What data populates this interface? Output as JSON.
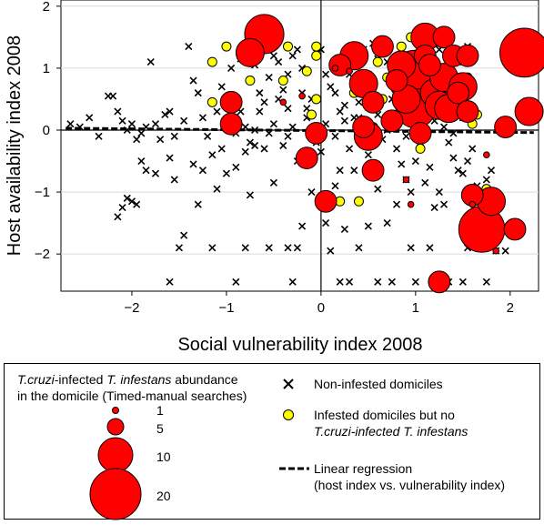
{
  "chart_data": {
    "type": "scatter",
    "xlabel": "Social vulnerability index 2008",
    "ylabel": "Host availability index 2008",
    "xlim": [
      -2.75,
      2.3
    ],
    "ylim": [
      -2.6,
      2.1
    ],
    "xticks": [
      "−2",
      "−1",
      "0",
      "1",
      "2"
    ],
    "xtick_values": [
      -2,
      -1,
      0,
      1,
      2
    ],
    "yticks": [
      "−2",
      "−1",
      "0",
      "1",
      "2"
    ],
    "ytick_values": [
      -2,
      -1,
      0,
      1,
      2
    ],
    "reference_lines": {
      "x": 0,
      "y": 0
    },
    "regression": {
      "x": [
        -2.7,
        2.25
      ],
      "y": [
        0.03,
        -0.04
      ]
    },
    "non_infested": [
      [
        -2.65,
        0.1
      ],
      [
        -2.55,
        0.05
      ],
      [
        -2.45,
        0.2
      ],
      [
        -2.35,
        -0.1
      ],
      [
        -2.25,
        0.55
      ],
      [
        -2.2,
        0.55
      ],
      [
        -2.15,
        0.3
      ],
      [
        -2.1,
        0.15
      ],
      [
        -2.05,
        0.0
      ],
      [
        -2.0,
        0.1
      ],
      [
        -1.95,
        -0.15
      ],
      [
        -1.9,
        -0.05
      ],
      [
        -1.85,
        0.05
      ],
      [
        -1.75,
        0.1
      ],
      [
        -1.7,
        -0.15
      ],
      [
        -1.65,
        0.25
      ],
      [
        -1.6,
        0.3
      ],
      [
        -1.55,
        -0.1
      ],
      [
        -1.8,
        1.1
      ],
      [
        -1.85,
        -0.65
      ],
      [
        -1.9,
        -0.5
      ],
      [
        -1.75,
        -0.7
      ],
      [
        -2.05,
        -1.1
      ],
      [
        -2.1,
        -1.25
      ],
      [
        -2.15,
        -1.4
      ],
      [
        -2.0,
        -1.15
      ],
      [
        -1.95,
        -1.2
      ],
      [
        -1.6,
        -0.45
      ],
      [
        -1.55,
        -0.8
      ],
      [
        -1.45,
        0.15
      ],
      [
        -1.4,
        1.35
      ],
      [
        -1.35,
        0.8
      ],
      [
        -1.3,
        0.6
      ],
      [
        -1.25,
        0.2
      ],
      [
        -1.2,
        -0.1
      ],
      [
        -1.15,
        -0.4
      ],
      [
        -1.1,
        -0.95
      ],
      [
        -1.05,
        -0.3
      ],
      [
        -1.0,
        0.5
      ],
      [
        -0.95,
        0.1
      ],
      [
        -0.9,
        -0.05
      ],
      [
        -0.85,
        0.3
      ],
      [
        -0.8,
        0.05
      ],
      [
        -0.75,
        -0.2
      ],
      [
        -0.7,
        0.0
      ],
      [
        -0.65,
        0.3
      ],
      [
        -0.6,
        0.45
      ],
      [
        -0.55,
        -0.05
      ],
      [
        -0.5,
        0.1
      ],
      [
        -0.45,
        0.5
      ],
      [
        -0.4,
        0.65
      ],
      [
        -0.35,
        0.9
      ],
      [
        -0.3,
        1.2
      ],
      [
        -0.25,
        1.3
      ],
      [
        -0.2,
        1.0
      ],
      [
        -0.15,
        0.2
      ],
      [
        -0.1,
        0.0
      ],
      [
        -0.05,
        -0.2
      ],
      [
        -0.3,
        0.05
      ],
      [
        -0.35,
        -0.1
      ],
      [
        -0.4,
        -0.25
      ],
      [
        -0.6,
        -0.3
      ],
      [
        -0.7,
        -0.25
      ],
      [
        -0.8,
        -0.35
      ],
      [
        -0.9,
        -0.6
      ],
      [
        -1.0,
        -0.7
      ],
      [
        -0.95,
        1.0
      ],
      [
        -0.85,
        1.15
      ],
      [
        -0.7,
        1.05
      ],
      [
        -0.5,
        1.2
      ],
      [
        -0.45,
        1.1
      ],
      [
        -0.55,
        0.85
      ],
      [
        -0.2,
        0.6
      ],
      [
        -0.15,
        0.35
      ],
      [
        -0.1,
        0.5
      ],
      [
        -0.05,
        1.25
      ],
      [
        0.0,
        1.3
      ],
      [
        0.05,
        0.9
      ],
      [
        0.1,
        0.7
      ],
      [
        0.15,
        0.6
      ],
      [
        0.2,
        0.3
      ],
      [
        0.25,
        0.4
      ],
      [
        0.3,
        0.9
      ],
      [
        0.35,
        0.6
      ],
      [
        0.4,
        0.2
      ],
      [
        0.45,
        -0.2
      ],
      [
        0.5,
        -0.4
      ],
      [
        0.55,
        0.8
      ],
      [
        0.6,
        1.15
      ],
      [
        0.65,
        1.3
      ],
      [
        0.7,
        1.1
      ],
      [
        0.75,
        0.5
      ],
      [
        0.8,
        -0.3
      ],
      [
        0.85,
        -0.55
      ],
      [
        0.9,
        -0.8
      ],
      [
        0.95,
        -1.0
      ],
      [
        1.0,
        -0.5
      ],
      [
        1.05,
        -0.2
      ],
      [
        1.1,
        -0.85
      ],
      [
        1.15,
        -0.6
      ],
      [
        1.2,
        -1.25
      ],
      [
        1.25,
        -1.0
      ],
      [
        1.3,
        -1.2
      ],
      [
        1.35,
        -0.2
      ],
      [
        1.4,
        -0.45
      ],
      [
        1.45,
        -0.65
      ],
      [
        1.5,
        -0.7
      ],
      [
        1.55,
        -0.5
      ],
      [
        1.6,
        -0.3
      ],
      [
        1.65,
        -0.9
      ],
      [
        1.7,
        -1.0
      ],
      [
        1.75,
        -0.8
      ],
      [
        1.8,
        -0.65
      ],
      [
        1.05,
        1.25
      ],
      [
        1.15,
        1.4
      ],
      [
        1.25,
        1.3
      ],
      [
        1.35,
        1.2
      ],
      [
        1.45,
        1.1
      ],
      [
        1.55,
        1.35
      ],
      [
        0.45,
        1.3
      ],
      [
        0.55,
        1.4
      ],
      [
        0.5,
        0.9
      ],
      [
        0.3,
        -0.3
      ],
      [
        0.2,
        -0.65
      ],
      [
        0.15,
        -0.9
      ],
      [
        0.1,
        -1.2
      ],
      [
        0.05,
        -1.5
      ],
      [
        -0.1,
        -1.0
      ],
      [
        -0.2,
        -1.55
      ],
      [
        -0.35,
        -1.9
      ],
      [
        -0.55,
        -1.9
      ],
      [
        -0.8,
        -1.9
      ],
      [
        -1.15,
        -1.9
      ],
      [
        -1.45,
        -1.7
      ],
      [
        -1.5,
        -1.9
      ],
      [
        -1.6,
        -2.45
      ],
      [
        -0.9,
        -2.45
      ],
      [
        -0.3,
        -2.45
      ],
      [
        0.2,
        -2.45
      ],
      [
        0.3,
        -2.45
      ],
      [
        0.6,
        -2.45
      ],
      [
        0.75,
        -2.45
      ],
      [
        1.0,
        -2.45
      ],
      [
        1.2,
        -2.45
      ],
      [
        1.35,
        -2.45
      ],
      [
        1.5,
        -2.45
      ],
      [
        1.75,
        -2.45
      ],
      [
        0.95,
        -1.9
      ],
      [
        1.15,
        -1.9
      ],
      [
        1.55,
        -1.9
      ],
      [
        1.8,
        -1.9
      ],
      [
        1.85,
        -1.95
      ],
      [
        1.95,
        -1.95
      ],
      [
        0.4,
        -1.9
      ],
      [
        0.1,
        -1.95
      ],
      [
        -0.25,
        -1.9
      ],
      [
        0.25,
        -1.6
      ],
      [
        0.5,
        -1.55
      ],
      [
        0.7,
        -1.5
      ],
      [
        0.8,
        -1.2
      ],
      [
        0.6,
        -0.95
      ],
      [
        0.35,
        -0.65
      ],
      [
        0.0,
        -0.35
      ],
      [
        -0.25,
        -0.5
      ],
      [
        -0.5,
        -0.85
      ],
      [
        -0.75,
        -1.05
      ],
      [
        -1.3,
        -1.2
      ],
      [
        -1.35,
        -0.55
      ],
      [
        -1.25,
        -0.65
      ],
      [
        -1.1,
        0.3
      ],
      [
        -1.05,
        0.7
      ],
      [
        -0.65,
        0.6
      ],
      [
        -0.35,
        0.35
      ],
      [
        0.05,
        0.1
      ],
      [
        0.15,
        -0.1
      ],
      [
        0.35,
        0.2
      ],
      [
        0.4,
        0.45
      ],
      [
        0.6,
        0.25
      ],
      [
        0.7,
        0.0
      ],
      [
        0.85,
        0.2
      ],
      [
        0.9,
        -0.1
      ],
      [
        1.1,
        0.1
      ],
      [
        1.2,
        0.15
      ],
      [
        1.4,
        -0.05
      ],
      [
        1.5,
        0.2
      ],
      [
        1.6,
        0.15
      ],
      [
        1.3,
        0.05
      ],
      [
        0.65,
        -0.15
      ],
      [
        0.45,
        0.05
      ],
      [
        0.25,
        0.15
      ]
    ],
    "infested_no_tcruzi": [
      [
        -1.15,
        1.1
      ],
      [
        -1.0,
        1.35
      ],
      [
        -0.95,
        0.05
      ],
      [
        -0.75,
        0.8
      ],
      [
        -0.55,
        1.35
      ],
      [
        -0.4,
        0.8
      ],
      [
        -0.15,
        0.95
      ],
      [
        -0.05,
        0.5
      ],
      [
        -0.1,
        0.25
      ],
      [
        -0.05,
        1.2
      ],
      [
        -0.05,
        1.35
      ],
      [
        0.35,
        0.6
      ],
      [
        0.4,
        1.1
      ],
      [
        0.45,
        0.15
      ],
      [
        0.55,
        0.05
      ],
      [
        0.6,
        1.1
      ],
      [
        0.65,
        0.5
      ],
      [
        0.7,
        0.85
      ],
      [
        0.75,
        0.2
      ],
      [
        0.85,
        1.35
      ],
      [
        0.85,
        1.1
      ],
      [
        0.9,
        0.5
      ],
      [
        0.95,
        1.5
      ],
      [
        1.05,
        0.3
      ],
      [
        1.1,
        1.3
      ],
      [
        1.15,
        1.0
      ],
      [
        1.15,
        1.25
      ],
      [
        1.3,
        0.45
      ],
      [
        1.4,
        0.7
      ],
      [
        1.45,
        0.3
      ],
      [
        1.55,
        0.2
      ],
      [
        1.6,
        0.1
      ],
      [
        1.55,
        0.85
      ],
      [
        1.65,
        0.25
      ],
      [
        1.75,
        -0.95
      ],
      [
        0.4,
        -1.15
      ],
      [
        0.2,
        -1.15
      ],
      [
        1.05,
        -0.3
      ],
      [
        -1.15,
        0.45
      ],
      [
        -0.35,
        1.35
      ]
    ],
    "tcruzi_infected": [
      [
        -0.6,
        1.55,
        10
      ],
      [
        -0.75,
        1.25,
        5
      ],
      [
        -0.95,
        0.45,
        3
      ],
      [
        -0.4,
        0.45,
        1
      ],
      [
        -0.15,
        -0.45,
        3
      ],
      [
        -0.05,
        -0.05,
        3
      ],
      [
        -0.2,
        0.55,
        1
      ],
      [
        -0.95,
        0.1,
        3
      ],
      [
        0.35,
        1.2,
        5
      ],
      [
        0.2,
        1.05,
        3
      ],
      [
        0.3,
        0.95,
        1
      ],
      [
        0.45,
        0.75,
        5
      ],
      [
        0.45,
        0.05,
        3
      ],
      [
        0.5,
        -0.1,
        5
      ],
      [
        0.55,
        0.45,
        3
      ],
      [
        0.55,
        -0.65,
        3
      ],
      [
        0.75,
        0.15,
        3
      ],
      [
        0.8,
        0.8,
        3
      ],
      [
        0.85,
        1.05,
        5
      ],
      [
        0.9,
        -0.8,
        1
      ],
      [
        0.9,
        0.5,
        5
      ],
      [
        1.0,
        0.85,
        20
      ],
      [
        1.0,
        0.35,
        10
      ],
      [
        1.05,
        -0.05,
        3
      ],
      [
        1.1,
        1.5,
        5
      ],
      [
        1.1,
        1.2,
        3
      ],
      [
        1.15,
        1.05,
        3
      ],
      [
        1.2,
        0.6,
        5
      ],
      [
        1.25,
        0.4,
        5
      ],
      [
        1.3,
        1.5,
        3
      ],
      [
        1.3,
        0.85,
        5
      ],
      [
        1.35,
        0.35,
        5
      ],
      [
        1.4,
        1.2,
        3
      ],
      [
        1.45,
        0.6,
        3
      ],
      [
        1.5,
        0.7,
        5
      ],
      [
        1.55,
        0.3,
        3
      ],
      [
        1.55,
        1.2,
        3
      ],
      [
        1.6,
        -1.05,
        3
      ],
      [
        1.75,
        -0.4,
        1
      ],
      [
        1.8,
        -1.15,
        5
      ],
      [
        1.7,
        -1.6,
        14
      ],
      [
        2.15,
        1.25,
        16
      ],
      [
        2.2,
        0.3,
        5
      ],
      [
        2.05,
        -1.6,
        3
      ],
      [
        1.25,
        -2.45,
        3
      ],
      [
        1.6,
        -1.2,
        1
      ],
      [
        0.05,
        -1.15,
        3
      ],
      [
        0.65,
        1.35,
        3
      ],
      [
        0.95,
        -1.2,
        1
      ],
      [
        1.95,
        0.05,
        3
      ],
      [
        1.85,
        -1.95,
        1
      ],
      [
        0.15,
        1.0,
        1
      ]
    ]
  },
  "legend": {
    "abundance_title_line1_a": "T.cruzi",
    "abundance_title_line1_b": "-infected ",
    "abundance_title_line1_c": "T. infestans",
    "abundance_title_line1_d": " abundance",
    "abundance_title_line2": "in the domicile (Timed-manual searches)",
    "size_labels": [
      "1",
      "5",
      "10",
      "20"
    ],
    "size_values": [
      1,
      5,
      10,
      20
    ],
    "non_infested_label": "Non-infested domiciles",
    "infested_label_line1": "Infested domiciles but no",
    "infested_label_line2_a": "T.cruzi",
    "infested_label_line2_b": "-infected ",
    "infested_label_line2_c": "T. infestans",
    "regression_label_line1": "Linear regression",
    "regression_label_line2": "(host index vs. vulnerability index)"
  },
  "colors": {
    "infected_fill": "#ff0000",
    "infested_fill": "#ffff00",
    "marker_stroke": "#000000",
    "gridline": "#d9d9d9"
  }
}
